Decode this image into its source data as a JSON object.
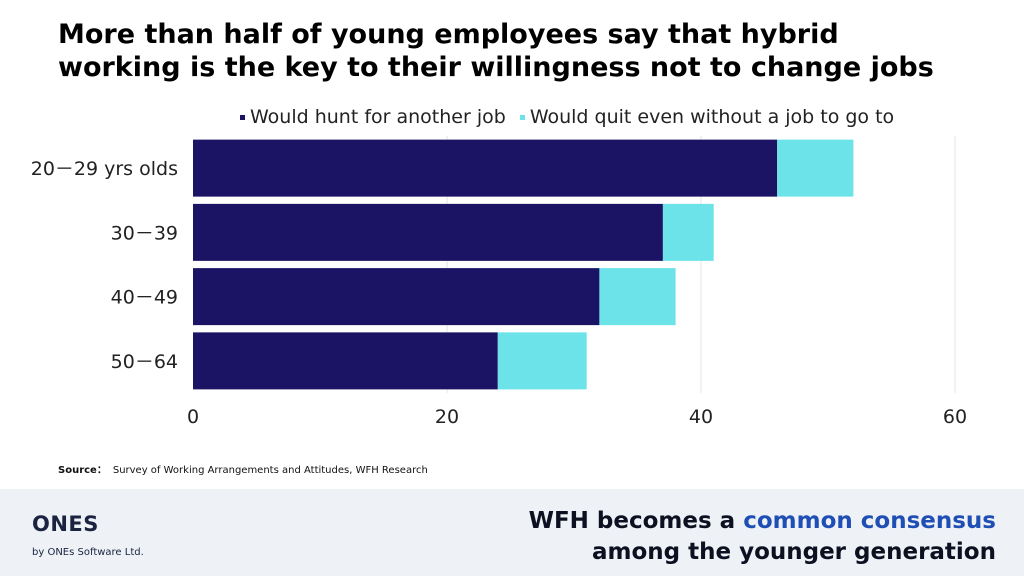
{
  "title": "More than half of young employees say that hybrid working is the key to their willingness not to change jobs",
  "colors": {
    "primary": "#1b1464",
    "secondary": "#6be3e8",
    "accent": "#1f4fb4"
  },
  "chart_data": {
    "type": "bar",
    "orientation": "horizontal",
    "stacked": true,
    "categories": [
      "20－29 yrs olds",
      "30－39",
      "40－49",
      "50－64"
    ],
    "series": [
      {
        "name": "Would hunt for another job",
        "color": "#1b1464",
        "values": [
          46,
          37,
          32,
          24
        ]
      },
      {
        "name": "Would quit even without a job to go to",
        "color": "#6be3e8",
        "values": [
          6,
          4,
          6,
          7
        ]
      }
    ],
    "xlim": [
      0,
      60
    ],
    "xticks": [
      0,
      20,
      40,
      60
    ],
    "grid": "vertical",
    "legend_position": "top"
  },
  "source": {
    "label": "Source：",
    "text": "Survey of Working Arrangements and Attitudes, WFH Research"
  },
  "footer": {
    "logo": "ONES",
    "logo_sub": "by ONEs Software Ltd.",
    "tagline_pre": "WFH becomes a ",
    "tagline_accent": "common consensus",
    "tagline_line2": "among the younger generation"
  }
}
